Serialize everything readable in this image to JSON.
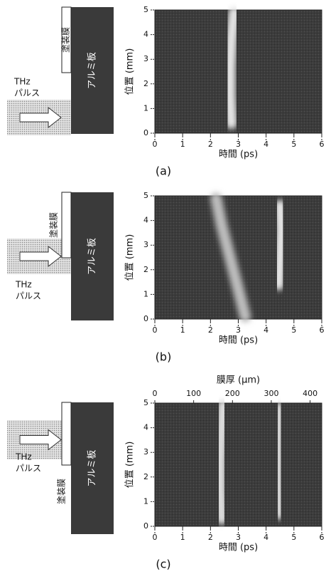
{
  "chart_data": [
    {
      "type": "intensity-map",
      "caption": "(a)",
      "xlabel": "時間 (ps)",
      "ylabel": "位置 (mm)",
      "xlim": [
        0,
        6
      ],
      "xticks": [
        0,
        1,
        2,
        3,
        4,
        5,
        6
      ],
      "ylim": [
        0,
        5
      ],
      "yticks": [
        0,
        1,
        2,
        3,
        4,
        5
      ],
      "diagram": {
        "beam": [
          "THz",
          "パルス"
        ],
        "film": "塗装膜",
        "plate": "アルミ板"
      },
      "series": [
        {
          "color": "#e6e6e6",
          "x": [
            2.75,
            2.7,
            2.7,
            2.75,
            2.85
          ],
          "y": [
            0.4,
            1.5,
            2.7,
            3.8,
            4.9
          ]
        }
      ]
    },
    {
      "type": "intensity-map",
      "caption": "(b)",
      "xlabel": "時間 (ps)",
      "ylabel": "位置 (mm)",
      "xlim": [
        0,
        6
      ],
      "xticks": [
        0,
        1,
        2,
        3,
        4,
        5,
        6
      ],
      "ylim": [
        0,
        5
      ],
      "yticks": [
        0,
        1,
        2,
        3,
        4,
        5
      ],
      "diagram": {
        "beam": [
          "THz",
          "パルス"
        ],
        "film": "塗装膜",
        "plate": "アルミ板"
      },
      "series": [
        {
          "color": "#bdbdbd",
          "x": [
            3.25,
            3.0,
            2.7,
            2.4,
            2.2
          ],
          "y": [
            0.1,
            1.2,
            2.5,
            3.8,
            4.9
          ]
        },
        {
          "color": "#e6e6e6",
          "x": [
            4.45,
            4.5,
            4.55,
            4.5
          ],
          "y": [
            1.4,
            2.5,
            3.6,
            4.6
          ]
        }
      ]
    },
    {
      "type": "intensity-map",
      "caption": "(c)",
      "xlabel": "時間 (ps)",
      "ylabel": "位置 (mm)",
      "xlim": [
        0,
        6
      ],
      "xticks": [
        0,
        1,
        2,
        3,
        4,
        5,
        6
      ],
      "ylim": [
        0,
        5
      ],
      "yticks": [
        0,
        1,
        2,
        3,
        4,
        5
      ],
      "x2label": "膜厚 (μm)",
      "x2lim": [
        0,
        430
      ],
      "x2ticks": [
        0,
        100,
        200,
        300,
        400
      ],
      "diagram": {
        "beam": [
          "THz",
          "パルス"
        ],
        "film": "塗装膜",
        "plate": "アルミ板"
      },
      "series": [
        {
          "color": "#dedede",
          "x": [
            2.4,
            2.35,
            2.35,
            2.4,
            2.45
          ],
          "y": [
            0.3,
            1.5,
            2.7,
            3.9,
            4.9
          ]
        },
        {
          "color": "#d6d6d6",
          "x": [
            4.5,
            4.45,
            4.45,
            4.5
          ],
          "y": [
            0.5,
            1.9,
            3.4,
            4.8
          ]
        }
      ]
    }
  ]
}
